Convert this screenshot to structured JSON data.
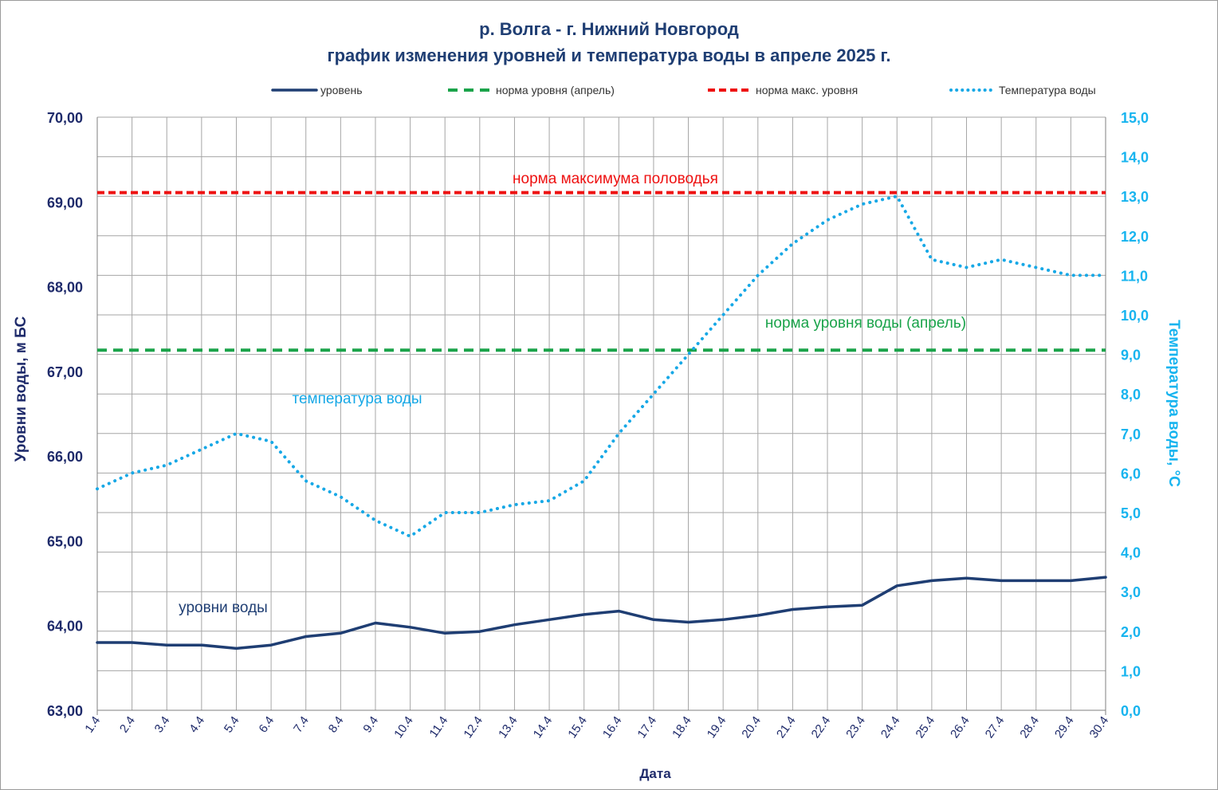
{
  "title": "р. Волга - г. Нижний Новгород",
  "subtitle": "график изменения уровней и температура воды в апреле 2025 г.",
  "colors": {
    "level": "#1f3e73",
    "norm_april": "#1aa34a",
    "norm_max": "#ee1111",
    "temperature": "#17a8e6",
    "axis_left_text": "#1f2b6b",
    "axis_right_text": "#17b4ef",
    "grid": "#a6a6a6"
  },
  "legend": {
    "level": "уровень",
    "norm_april": "норма уровня (апрель)",
    "norm_max": "норма макс. уровня",
    "temperature": "Температура воды"
  },
  "annotations": {
    "norm_max": "норма  максимума половодья",
    "norm_april": "норма уровня воды  (апрель)",
    "temperature": "температура воды",
    "level": "уровни воды"
  },
  "chart_data": {
    "type": "line",
    "xlabel": "Дата",
    "ylabel": "Уровни воды, м БС",
    "y2label": "Температура воды, °С",
    "ylim": [
      63,
      70
    ],
    "y2lim": [
      0,
      15
    ],
    "yticks": [
      "63,00",
      "64,00",
      "65,00",
      "66,00",
      "67,00",
      "68,00",
      "69,00",
      "70,00"
    ],
    "y2ticks": [
      "0,0",
      "1,0",
      "2,0",
      "3,0",
      "4,0",
      "5,0",
      "6,0",
      "7,0",
      "8,0",
      "9,0",
      "10,0",
      "11,0",
      "12,0",
      "13,0",
      "14,0",
      "15,0"
    ],
    "grid": true,
    "legend_position": "top",
    "categories": [
      "1.4",
      "2.4",
      "3.4",
      "4.4",
      "5.4",
      "6.4",
      "7.4",
      "8.4",
      "9.4",
      "10.4",
      "11.4",
      "12.4",
      "13.4",
      "14.4",
      "15.4",
      "16.4",
      "17.4",
      "18.4",
      "19.4",
      "20.4",
      "21.4",
      "22.4",
      "23.4",
      "24.4",
      "25.4",
      "26.4",
      "27.4",
      "28.4",
      "29.4",
      "30.4"
    ],
    "series": [
      {
        "name": "уровень",
        "axis": "left",
        "style": "solid",
        "values": [
          63.8,
          63.8,
          63.77,
          63.77,
          63.73,
          63.77,
          63.87,
          63.91,
          64.03,
          63.98,
          63.91,
          63.93,
          64.01,
          64.07,
          64.13,
          64.17,
          64.07,
          64.04,
          64.07,
          64.12,
          64.19,
          64.22,
          64.24,
          64.47,
          64.53,
          64.56,
          64.53,
          64.53,
          64.53,
          64.57
        ]
      },
      {
        "name": "норма уровня (апрель)",
        "axis": "left",
        "style": "dashed",
        "values": [
          67.25,
          67.25,
          67.25,
          67.25,
          67.25,
          67.25,
          67.25,
          67.25,
          67.25,
          67.25,
          67.25,
          67.25,
          67.25,
          67.25,
          67.25,
          67.25,
          67.25,
          67.25,
          67.25,
          67.25,
          67.25,
          67.25,
          67.25,
          67.25,
          67.25,
          67.25,
          67.25,
          67.25,
          67.25,
          67.25
        ]
      },
      {
        "name": "норма макс. уровня",
        "axis": "left",
        "style": "dashed",
        "values": [
          69.11,
          69.11,
          69.11,
          69.11,
          69.11,
          69.11,
          69.11,
          69.11,
          69.11,
          69.11,
          69.11,
          69.11,
          69.11,
          69.11,
          69.11,
          69.11,
          69.11,
          69.11,
          69.11,
          69.11,
          69.11,
          69.11,
          69.11,
          69.11,
          69.11,
          69.11,
          69.11,
          69.11,
          69.11,
          69.11
        ]
      },
      {
        "name": "Температура воды",
        "axis": "right",
        "style": "dotted",
        "values": [
          5.6,
          6.0,
          6.2,
          6.6,
          7.0,
          6.8,
          5.8,
          5.4,
          4.8,
          4.4,
          5.0,
          5.0,
          5.2,
          5.3,
          5.8,
          7.0,
          8.0,
          9.0,
          10.0,
          11.0,
          11.8,
          12.4,
          12.8,
          13.0,
          11.4,
          11.2,
          11.4,
          11.2,
          11.0,
          11.0
        ]
      }
    ]
  }
}
